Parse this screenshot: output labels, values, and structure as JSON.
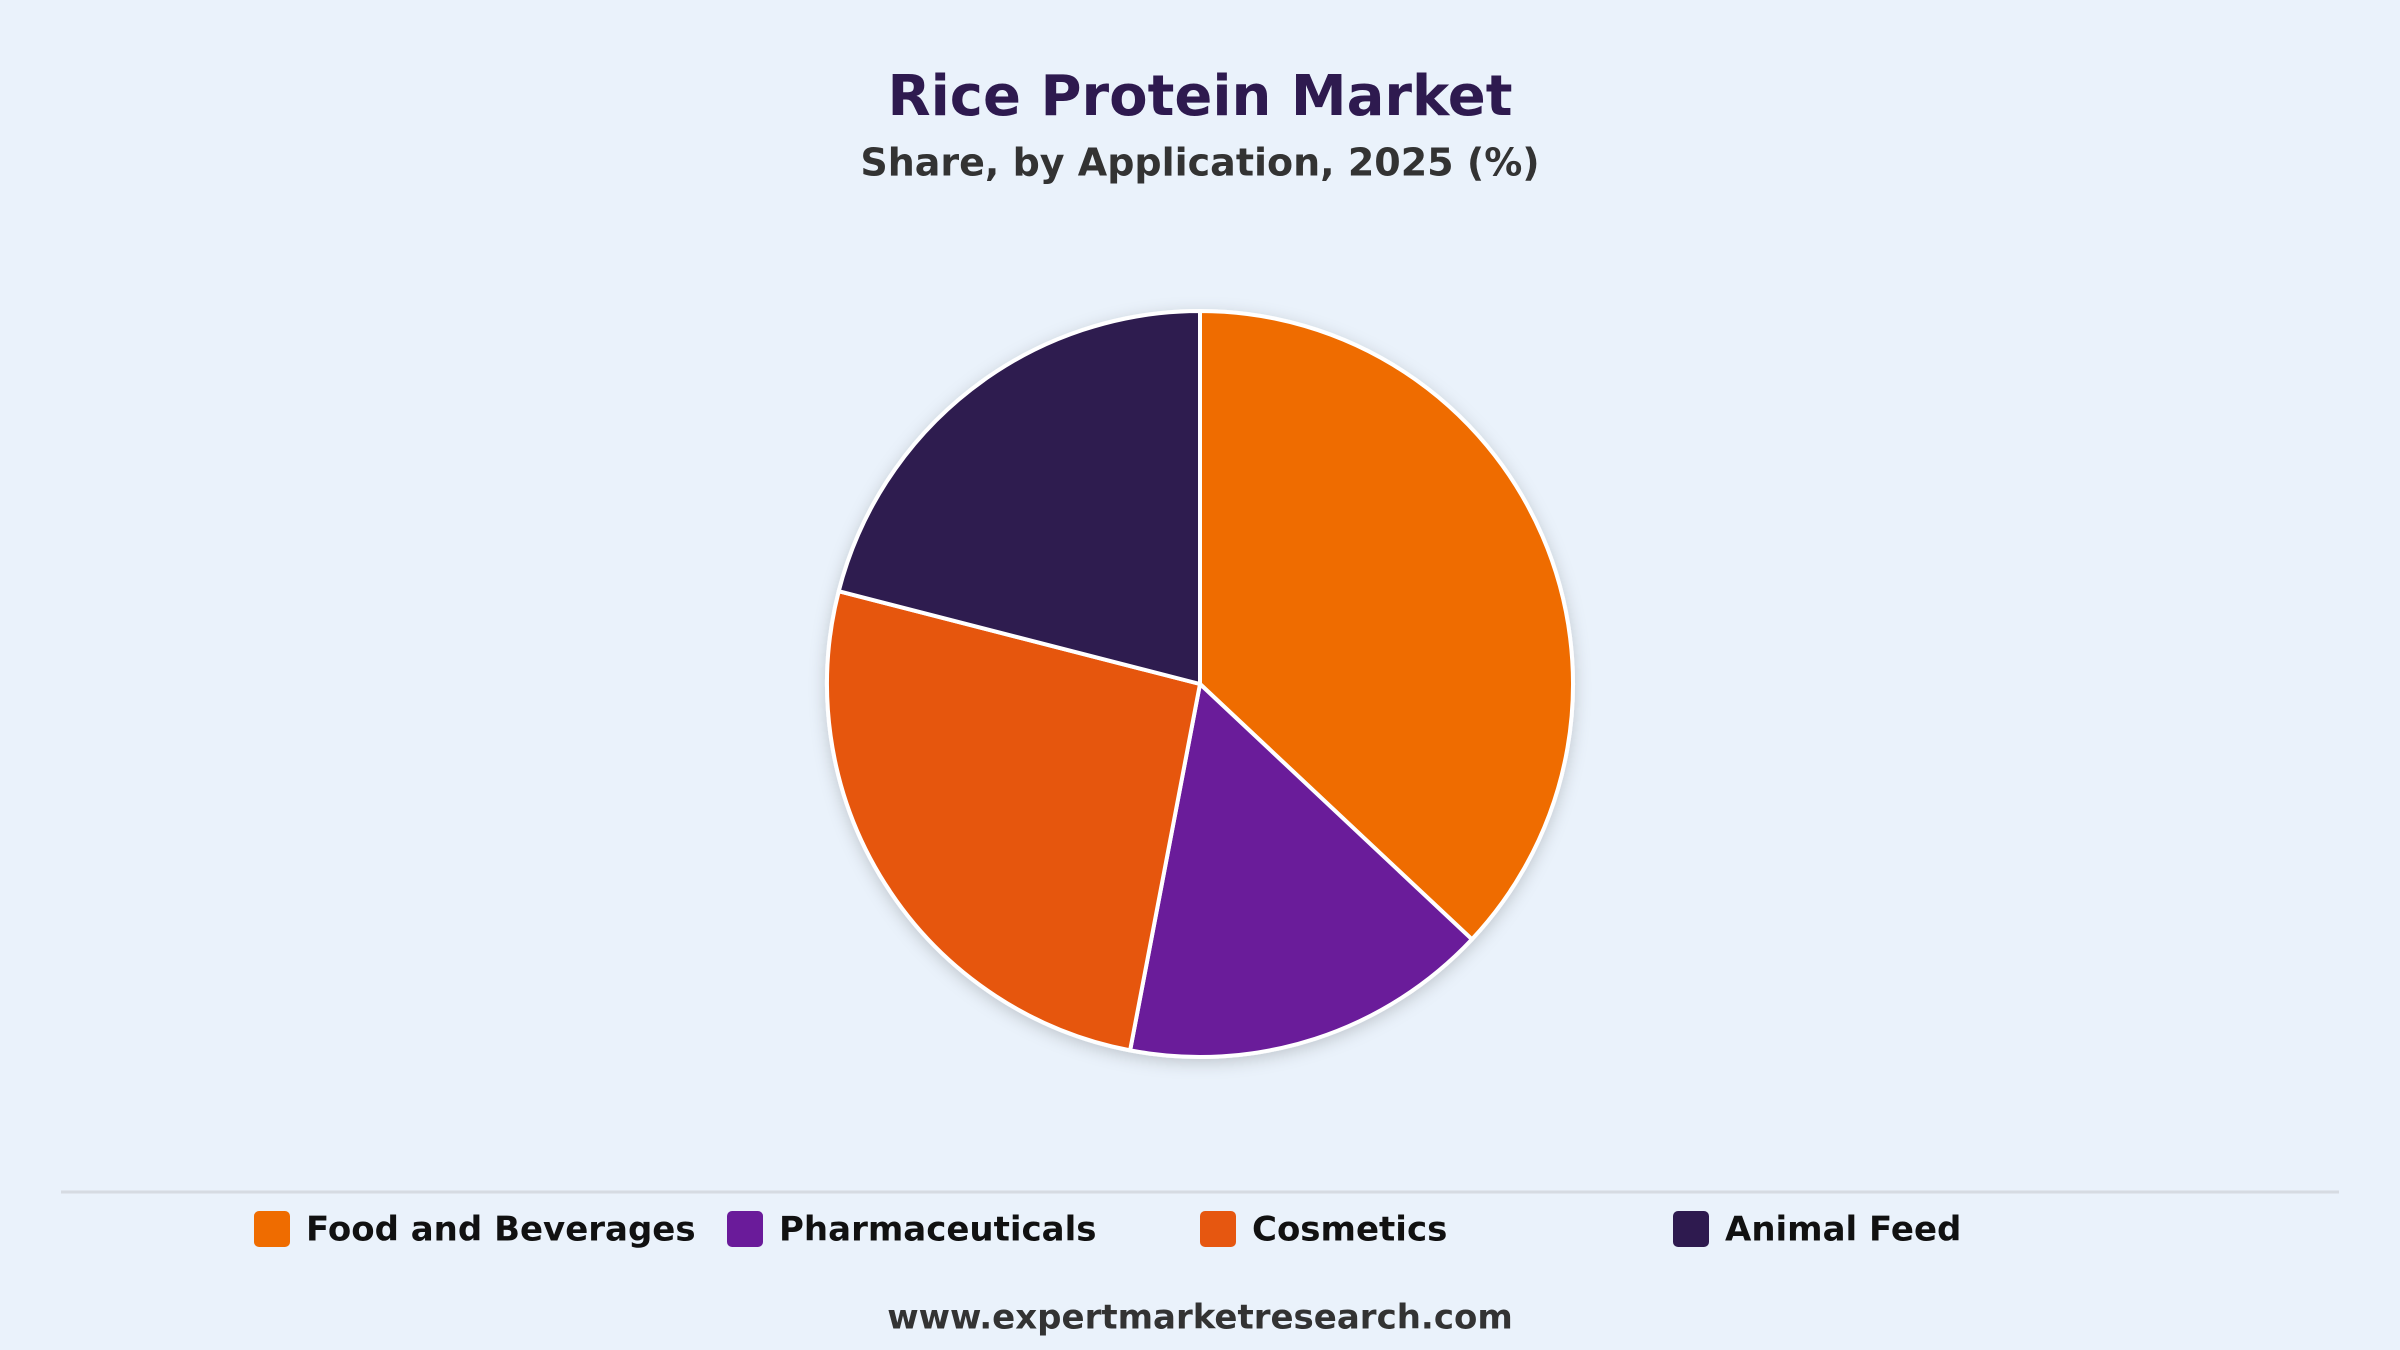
{
  "chart_data": {
    "type": "pie",
    "title": "Rice Protein Market",
    "subtitle": "Share, by Application, 2025 (%)",
    "categories": [
      "Food and Beverages",
      "Pharmaceuticals",
      "Cosmetics",
      "Animal Feed"
    ],
    "values": [
      37,
      16,
      26,
      21
    ],
    "colors": [
      "#ef6c00",
      "#6a1b9a",
      "#e65710",
      "#2e1a4f"
    ],
    "legend": "bottom"
  },
  "footer": "www.expertmarketresearch.com"
}
